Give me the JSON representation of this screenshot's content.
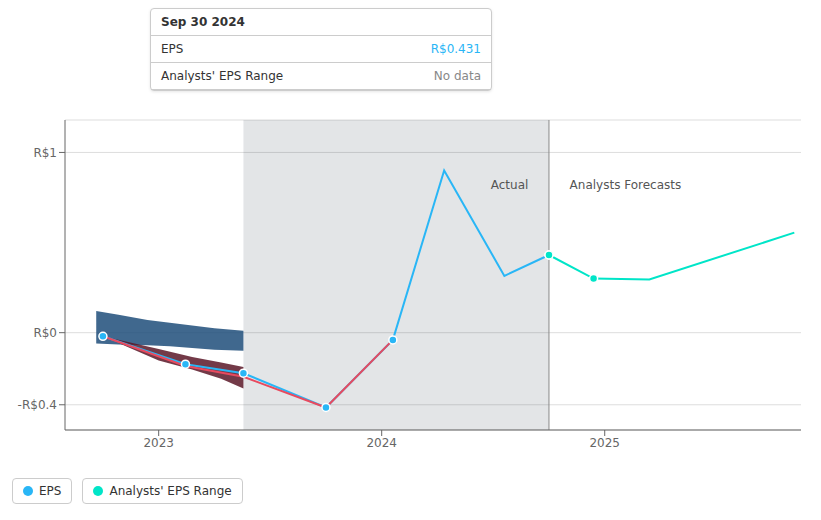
{
  "chart_data": {
    "type": "line",
    "xlim": [
      2022.58,
      2025.88
    ],
    "ylim": [
      -0.54,
      1.18
    ],
    "xticks": [
      2023,
      2024,
      2025
    ],
    "yticks": [
      {
        "value": 1.0,
        "label": "R$1"
      },
      {
        "value": 0.0,
        "label": "R$0"
      },
      {
        "value": -0.4,
        "label": "-R$0.4"
      }
    ],
    "grid": true,
    "legend": "lower left",
    "series": [
      {
        "name": "EPS",
        "type": "line",
        "color": "#29b6f6",
        "marker": "circle",
        "x": [
          2022.75,
          2023.12,
          2023.38,
          2023.75,
          2024.05,
          2024.28,
          2024.55,
          2024.75
        ],
        "values": [
          -0.02,
          -0.175,
          -0.225,
          -0.415,
          -0.04,
          0.9,
          0.315,
          0.431
        ],
        "marker_x": [
          2022.75,
          2023.12,
          2023.38,
          2023.75,
          2024.05,
          2024.75
        ],
        "marker_values": [
          -0.02,
          -0.175,
          -0.225,
          -0.415,
          -0.04,
          0.431
        ]
      },
      {
        "name": "Analysts' EPS Range",
        "type": "line",
        "color": "#00e5c8",
        "marker": "circle",
        "x": [
          2024.75,
          2024.95,
          2025.2,
          2025.85
        ],
        "values": [
          0.431,
          0.3,
          0.295,
          0.555
        ],
        "marker_x": [
          2024.75,
          2024.95
        ],
        "marker_values": [
          0.431,
          0.3
        ]
      },
      {
        "type": "line",
        "color": "#e84a5f",
        "x": [
          2022.75,
          2023.12,
          2023.38,
          2023.75,
          2024.05
        ],
        "values": [
          -0.02,
          -0.185,
          -0.245,
          -0.415,
          -0.04
        ]
      },
      {
        "type": "area",
        "color": "#1e4d7a",
        "x": [
          2022.72,
          2022.82,
          2022.95,
          2023.05,
          2023.15,
          2023.25,
          2023.38
        ],
        "values": [
          0.12,
          0.1,
          0.07,
          0.055,
          0.04,
          0.025,
          0.01
        ],
        "lower": [
          -0.06,
          -0.065,
          -0.07,
          -0.075,
          -0.085,
          -0.095,
          -0.1
        ]
      },
      {
        "type": "area",
        "color": "#5a1828",
        "x": [
          2022.75,
          2023.0,
          2023.15,
          2023.28,
          2023.38
        ],
        "values": [
          -0.02,
          -0.09,
          -0.135,
          -0.165,
          -0.19
        ],
        "lower": [
          -0.02,
          -0.155,
          -0.205,
          -0.255,
          -0.31
        ]
      }
    ],
    "shade": {
      "x": [
        2023.38,
        2024.75
      ],
      "color": "#152638"
    },
    "vlines": [
      2024.75
    ],
    "annotations": [
      {
        "text": "Actual",
        "x": 2024.68,
        "y": 0.82
      },
      {
        "text": "Analysts Forecasts",
        "x": 2024.82,
        "y": 0.82
      }
    ],
    "tooltip": {
      "title": "Sep 30 2024",
      "rows": [
        {
          "label": "EPS",
          "value": "R$0.431",
          "color": "#29b6f6"
        },
        {
          "label": "Analysts' EPS Range",
          "value": "No data"
        }
      ]
    }
  }
}
